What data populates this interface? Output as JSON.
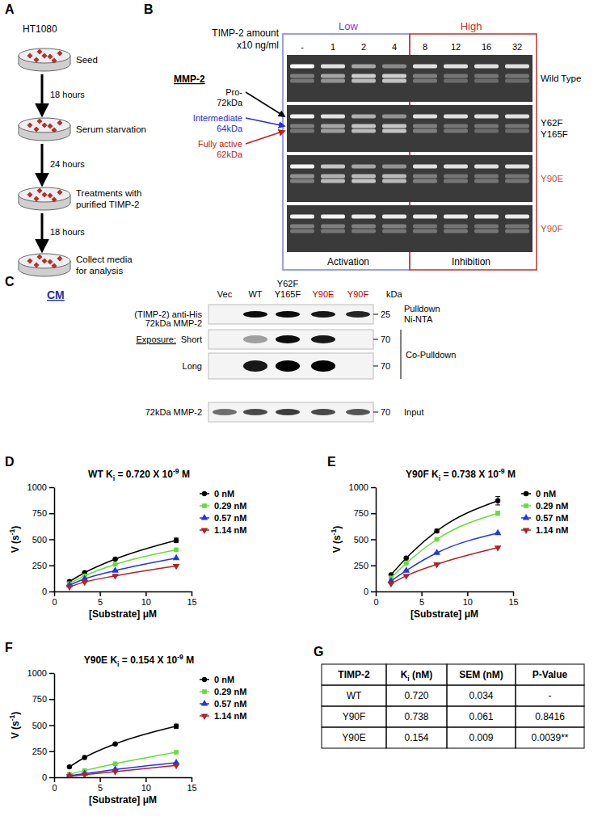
{
  "panel_a": {
    "panel_label": "A",
    "cell_line": "HT1080",
    "steps": [
      [
        "Seed"
      ],
      [
        "Serum starvation"
      ],
      [
        "Treatments with",
        "purified TIMP-2"
      ],
      [
        "Collect media",
        "for analysis"
      ]
    ],
    "intervals": [
      "18 hours",
      "24 hours",
      "18 hours"
    ]
  },
  "panel_b": {
    "panel_label": "B",
    "amount_title": [
      "TIMP-2 amount",
      "x10 ng/ml"
    ],
    "low": "Low",
    "high": "High",
    "lanes": [
      "-",
      "1",
      "2",
      "4",
      "8",
      "12",
      "16",
      "32"
    ],
    "activation": "Activation",
    "inhibition": "Inhibition",
    "mmp2": "MMP-2",
    "forms": [
      [
        "Pro-",
        "72kDa"
      ],
      [
        "Intermediate",
        "64kDa"
      ],
      [
        "Fully active",
        "62kDa"
      ]
    ],
    "gels": [
      {
        "name": [
          "Wild Type"
        ],
        "bands": [
          [
            1,
            0.35,
            0.3
          ],
          [
            0.85,
            0.55,
            0.45
          ],
          [
            0.55,
            0.75,
            0.65
          ],
          [
            0.4,
            0.75,
            0.7
          ],
          [
            0.85,
            0.35,
            0.3
          ],
          [
            0.85,
            0.3,
            0.25
          ],
          [
            0.85,
            0.3,
            0.25
          ],
          [
            0.85,
            0.3,
            0.25
          ]
        ]
      },
      {
        "name": [
          "Y62F",
          "Y165F"
        ],
        "bands": [
          [
            0.95,
            0.35,
            0.3
          ],
          [
            0.85,
            0.55,
            0.5
          ],
          [
            0.6,
            0.7,
            0.65
          ],
          [
            0.45,
            0.7,
            0.7
          ],
          [
            0.85,
            0.35,
            0.35
          ],
          [
            0.85,
            0.3,
            0.3
          ],
          [
            0.85,
            0.3,
            0.25
          ],
          [
            0.85,
            0.3,
            0.25
          ]
        ]
      },
      {
        "name": [
          "Y90E"
        ],
        "bands": [
          [
            0.95,
            0.45,
            0.35
          ],
          [
            0.7,
            0.6,
            0.65
          ],
          [
            0.55,
            0.65,
            0.7
          ],
          [
            0.45,
            0.65,
            0.65
          ],
          [
            0.85,
            0.35,
            0.35
          ],
          [
            0.85,
            0.3,
            0.3
          ],
          [
            0.85,
            0.3,
            0.3
          ],
          [
            0.85,
            0.3,
            0.3
          ]
        ]
      },
      {
        "name": [
          "Y90F"
        ],
        "bands": [
          [
            0.95,
            0.35,
            0.3
          ],
          [
            0.95,
            0.35,
            0.3
          ],
          [
            0.9,
            0.35,
            0.3
          ],
          [
            0.9,
            0.35,
            0.3
          ],
          [
            0.9,
            0.3,
            0.3
          ],
          [
            0.9,
            0.3,
            0.3
          ],
          [
            0.9,
            0.3,
            0.3
          ],
          [
            0.9,
            0.3,
            0.3
          ]
        ]
      }
    ]
  },
  "panel_c": {
    "panel_label": "C",
    "cm": "CM",
    "columns": [
      [
        "Vec"
      ],
      [
        "WT"
      ],
      [
        "Y62F",
        "Y165F"
      ],
      [
        "Y90E"
      ],
      [
        "Y90F"
      ]
    ],
    "kda": "kDa",
    "mmp2_label": "72kDa MMP-2",
    "exposure": "Exposure:",
    "co_pulldown": "Co-Pulldown",
    "blots": [
      {
        "left": "(TIMP-2) anti-His",
        "size": "25",
        "right": [
          "Pulldown",
          "Ni-NTA"
        ],
        "bands": [
          0,
          0.95,
          0.95,
          0.9,
          0.85
        ]
      },
      {
        "left": "Short",
        "size": "70",
        "right": [],
        "bands": [
          0,
          0.35,
          0.95,
          0.9,
          0
        ]
      },
      {
        "left": "Long",
        "size": "70",
        "right": [],
        "bands": [
          0,
          0.9,
          1,
          1,
          0
        ]
      },
      {
        "left": "72kDa MMP-2",
        "size": "70",
        "right": [
          "Input"
        ],
        "bands": [
          0.55,
          0.7,
          0.75,
          0.7,
          0.65
        ]
      }
    ]
  },
  "chart_data": [
    {
      "type": "line",
      "panel_label": "D",
      "title": [
        "WT K",
        "i",
        " = 0.720 X 10",
        "-9",
        " M"
      ],
      "x_label": "[Substrate] μM",
      "y_label": [
        "V (s",
        "-1",
        ")"
      ],
      "x": [
        1.67,
        3.33,
        6.67,
        13.33
      ],
      "xlim": [
        0,
        15
      ],
      "xticks": [
        0,
        5,
        10,
        15
      ],
      "ylim": [
        0,
        1000
      ],
      "yticks": [
        0,
        250,
        500,
        750,
        1000
      ],
      "legend": "right",
      "series": [
        {
          "name": "0 nM",
          "color": "#000000",
          "marker": "circle",
          "values": [
            95,
            180,
            310,
            490
          ],
          "errors": [
            0,
            0,
            0,
            22
          ]
        },
        {
          "name": "0.29 nM",
          "color": "#66dd33",
          "marker": "square",
          "values": [
            75,
            150,
            260,
            400
          ],
          "errors": [
            0,
            0,
            0,
            0
          ]
        },
        {
          "name": "0.57 nM",
          "color": "#2233ee",
          "marker": "triangle-up",
          "values": [
            60,
            120,
            200,
            320
          ],
          "errors": [
            0,
            0,
            0,
            0
          ]
        },
        {
          "name": "1.14 nM",
          "color": "#b22222",
          "marker": "triangle-down",
          "values": [
            45,
            90,
            150,
            245
          ],
          "errors": [
            0,
            0,
            0,
            0
          ]
        }
      ]
    },
    {
      "type": "line",
      "panel_label": "E",
      "title": [
        "Y90F K",
        "i",
        " = 0.738 X 10",
        "-9",
        " M"
      ],
      "x_label": "[Substrate] μM",
      "y_label": [
        "V (s",
        "-1",
        ")"
      ],
      "x": [
        1.67,
        3.33,
        6.67,
        13.33
      ],
      "xlim": [
        0,
        15
      ],
      "xticks": [
        0,
        5,
        10,
        15
      ],
      "ylim": [
        0,
        1000
      ],
      "yticks": [
        0,
        250,
        500,
        750,
        1000
      ],
      "legend": "right",
      "series": [
        {
          "name": "0 nM",
          "color": "#000000",
          "marker": "circle",
          "values": [
            160,
            320,
            580,
            870
          ],
          "errors": [
            0,
            0,
            15,
            40
          ]
        },
        {
          "name": "0.29 nM",
          "color": "#66dd33",
          "marker": "square",
          "values": [
            130,
            270,
            500,
            750
          ],
          "errors": [
            0,
            0,
            0,
            20
          ]
        },
        {
          "name": "0.57 nM",
          "color": "#2233ee",
          "marker": "triangle-up",
          "values": [
            100,
            200,
            370,
            560
          ],
          "errors": [
            0,
            0,
            0,
            0
          ]
        },
        {
          "name": "1.14 nM",
          "color": "#b22222",
          "marker": "triangle-down",
          "values": [
            75,
            150,
            260,
            420
          ],
          "errors": [
            0,
            0,
            0,
            0
          ]
        }
      ]
    },
    {
      "type": "line",
      "panel_label": "F",
      "title": [
        "Y90E K",
        "i",
        " = 0.154 X 10",
        "-9",
        " M"
      ],
      "x_label": "[Substrate] μM",
      "y_label": [
        "V (s",
        "-1",
        ")"
      ],
      "x": [
        1.67,
        3.33,
        6.67,
        13.33
      ],
      "xlim": [
        0,
        15
      ],
      "xticks": [
        0,
        5,
        10,
        15
      ],
      "ylim": [
        0,
        1000
      ],
      "yticks": [
        0,
        250,
        500,
        750,
        1000
      ],
      "legend": "right",
      "series": [
        {
          "name": "0 nM",
          "color": "#000000",
          "marker": "circle",
          "values": [
            100,
            190,
            320,
            490
          ],
          "errors": [
            0,
            0,
            0,
            20
          ]
        },
        {
          "name": "0.29 nM",
          "color": "#66dd33",
          "marker": "square",
          "values": [
            30,
            65,
            130,
            240
          ],
          "errors": [
            0,
            0,
            0,
            0
          ]
        },
        {
          "name": "0.57 nM",
          "color": "#2233ee",
          "marker": "triangle-up",
          "values": [
            15,
            35,
            75,
            140
          ],
          "errors": [
            0,
            0,
            0,
            0
          ]
        },
        {
          "name": "1.14 nM",
          "color": "#b22222",
          "marker": "triangle-down",
          "values": [
            10,
            25,
            55,
            115
          ],
          "errors": [
            0,
            0,
            0,
            0
          ]
        }
      ]
    }
  ],
  "table": {
    "panel_label": "G",
    "header": [
      "TIMP-2",
      [
        "K",
        "i",
        " (nM)"
      ],
      "SEM (nM)",
      "P-Value"
    ],
    "rows": [
      [
        "WT",
        "0.720",
        "0.034",
        "-"
      ],
      [
        "Y90F",
        "0.738",
        "0.061",
        "0.8416"
      ],
      [
        "Y90E",
        "0.154",
        "0.009",
        "0.0039**"
      ]
    ]
  }
}
